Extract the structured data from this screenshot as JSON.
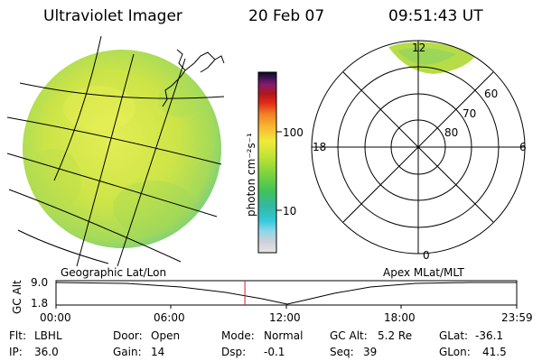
{
  "header": {
    "instrument": "Ultraviolet Imager",
    "date": "20 Feb 07",
    "time": "09:51:43 UT"
  },
  "colorbar": {
    "unit": "photon cm⁻²s⁻¹",
    "ticks": [
      "100",
      "10"
    ]
  },
  "polar": {
    "mlt_labels": {
      "top": "12",
      "left": "18",
      "right": "6",
      "bottom": "0"
    },
    "lat_labels": [
      "60",
      "70",
      "80"
    ]
  },
  "panels": {
    "left_caption": "Geographic Lat/Lon",
    "right_caption": "Apex MLat/MLT"
  },
  "timeline": {
    "axis_label": "GC Alt",
    "y_ticks": [
      "9.0",
      "1.8"
    ],
    "x_ticks": [
      "00:00",
      "06:00",
      "12:00",
      "18:00",
      "23:59"
    ],
    "marker_fraction": 0.41
  },
  "info": {
    "row1": [
      {
        "key": "Flt:",
        "value": "LBHL"
      },
      {
        "key": "Door:",
        "value": "Open"
      },
      {
        "key": "Mode:",
        "value": "Normal"
      },
      {
        "key": "GC Alt:",
        "value": "5.2 Re"
      },
      {
        "key": "GLat:",
        "value": "-36.1"
      }
    ],
    "row2": [
      {
        "key": "IP:",
        "value": "36.0"
      },
      {
        "key": "Gain:",
        "value": "14"
      },
      {
        "key": "Dsp:",
        "value": "-0.1"
      },
      {
        "key": "Seq:",
        "value": "39"
      },
      {
        "key": "GLon:",
        "value": "41.5"
      }
    ]
  },
  "colors": {
    "image_main": "#d8e84a",
    "image_edge": "#7fd17a",
    "marker": "#cc2222"
  }
}
